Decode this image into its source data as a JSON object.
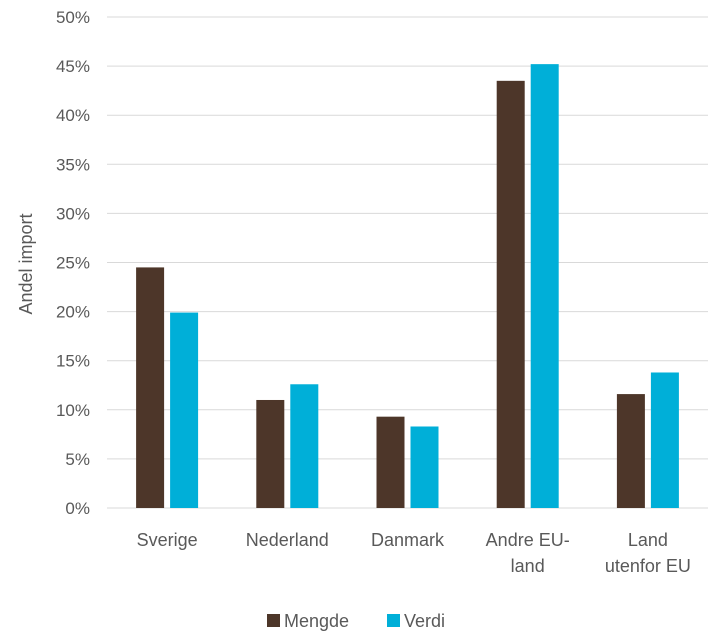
{
  "chart_data": {
    "type": "bar",
    "title": "",
    "xlabel": "",
    "ylabel": "Andel import",
    "categories": [
      "Sverige",
      "Nederland",
      "Danmark",
      "Andre EU-land",
      "Land utenfor EU"
    ],
    "category_lines": [
      [
        "Sverige"
      ],
      [
        "Nederland"
      ],
      [
        "Danmark"
      ],
      [
        "Andre EU-",
        "land"
      ],
      [
        "Land",
        "utenfor EU"
      ]
    ],
    "series": [
      {
        "name": "Mengde",
        "color": "#4d3629",
        "values": [
          24.5,
          11.0,
          9.3,
          43.5,
          11.6
        ]
      },
      {
        "name": "Verdi",
        "color": "#00afd8",
        "values": [
          19.9,
          12.6,
          8.3,
          45.2,
          13.8
        ]
      }
    ],
    "ylim": [
      0,
      50
    ],
    "yticks": [
      "0%",
      "5%",
      "10%",
      "15%",
      "20%",
      "25%",
      "30%",
      "35%",
      "40%",
      "45%",
      "50%"
    ],
    "grid": true,
    "legend_position": "bottom",
    "gridline_color": "#d9d9d9"
  }
}
